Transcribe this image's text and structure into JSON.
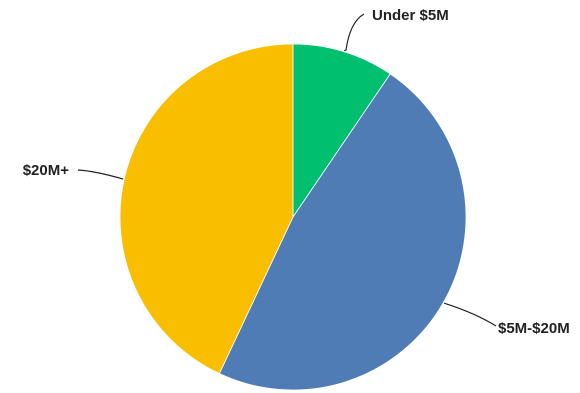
{
  "chart_data": {
    "type": "pie",
    "title": "",
    "start_angle_deg": 0,
    "direction": "clockwise",
    "slices": [
      {
        "label": "Under $5M",
        "value": 9.5,
        "color": "#00BF6F"
      },
      {
        "label": "$5M-$20M",
        "value": 47.5,
        "color": "#507CB6"
      },
      {
        "label": "$20M+",
        "value": 43.0,
        "color": "#F9BE00"
      }
    ]
  }
}
